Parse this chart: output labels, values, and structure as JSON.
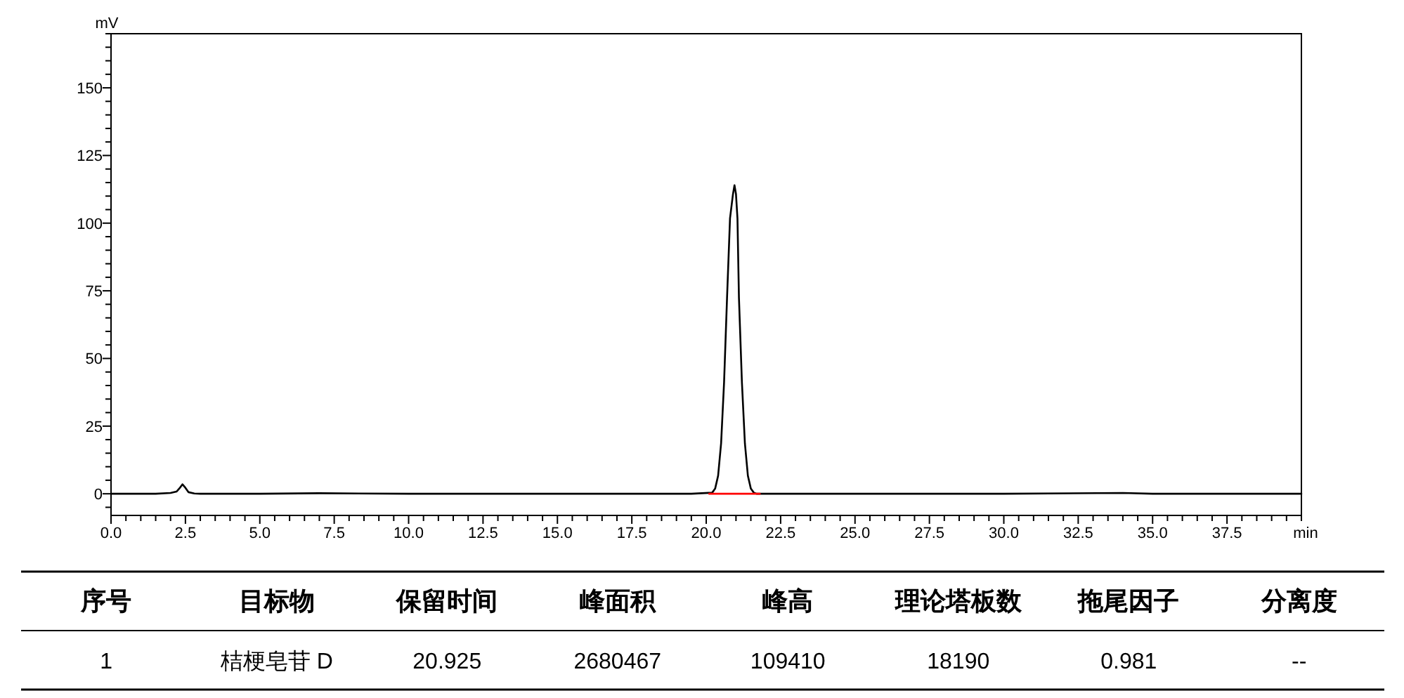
{
  "chart_data": {
    "type": "line",
    "xlabel": "min",
    "ylabel": "mV",
    "series": [
      {
        "color": "#000000",
        "x": [
          0,
          1.5,
          2.0,
          2.2,
          2.3,
          2.4,
          2.5,
          2.6,
          2.8,
          3.0,
          5,
          7,
          10,
          15,
          19.5,
          20.2,
          20.3,
          20.4,
          20.5,
          20.6,
          20.7,
          20.8,
          20.9,
          20.95,
          21.0,
          21.05,
          21.1,
          21.2,
          21.3,
          21.4,
          21.5,
          21.6,
          21.7,
          21.8,
          22.5,
          30,
          34,
          35,
          40
        ],
        "values": [
          0,
          0,
          0.3,
          0.8,
          2.0,
          3.5,
          2.2,
          0.6,
          0.1,
          0,
          0,
          0.2,
          0,
          0,
          0,
          0.4,
          1.9,
          6.7,
          18.6,
          41.1,
          72.4,
          101.8,
          110.8,
          114,
          110.8,
          101.8,
          72.4,
          41.1,
          18.6,
          6.7,
          1.9,
          0.4,
          0,
          0,
          0,
          0,
          0.3,
          0,
          0
        ]
      },
      {
        "color": "#ff0000",
        "x": [
          20.1,
          21.8
        ],
        "values": [
          0,
          0
        ]
      }
    ],
    "xlim": [
      0,
      40
    ],
    "ylim": [
      -8,
      170
    ],
    "xticks": [
      {
        "value": 0,
        "label": "0.0"
      },
      {
        "value": 0.5,
        "label": null
      },
      {
        "value": 1,
        "label": null
      },
      {
        "value": 1.5,
        "label": null
      },
      {
        "value": 2,
        "label": null
      },
      {
        "value": 2.5,
        "label": "2.5"
      },
      {
        "value": 3,
        "label": null
      },
      {
        "value": 3.5,
        "label": null
      },
      {
        "value": 4,
        "label": null
      },
      {
        "value": 4.5,
        "label": null
      },
      {
        "value": 5,
        "label": "5.0"
      },
      {
        "value": 5.5,
        "label": null
      },
      {
        "value": 6,
        "label": null
      },
      {
        "value": 6.5,
        "label": null
      },
      {
        "value": 7,
        "label": null
      },
      {
        "value": 7.5,
        "label": "7.5"
      },
      {
        "value": 8,
        "label": null
      },
      {
        "value": 8.5,
        "label": null
      },
      {
        "value": 9,
        "label": null
      },
      {
        "value": 9.5,
        "label": null
      },
      {
        "value": 10,
        "label": "10.0"
      },
      {
        "value": 10.5,
        "label": null
      },
      {
        "value": 11,
        "label": null
      },
      {
        "value": 11.5,
        "label": null
      },
      {
        "value": 12,
        "label": null
      },
      {
        "value": 12.5,
        "label": "12.5"
      },
      {
        "value": 13,
        "label": null
      },
      {
        "value": 13.5,
        "label": null
      },
      {
        "value": 14,
        "label": null
      },
      {
        "value": 14.5,
        "label": null
      },
      {
        "value": 15,
        "label": "15.0"
      },
      {
        "value": 15.5,
        "label": null
      },
      {
        "value": 16,
        "label": null
      },
      {
        "value": 16.5,
        "label": null
      },
      {
        "value": 17,
        "label": null
      },
      {
        "value": 17.5,
        "label": "17.5"
      },
      {
        "value": 18,
        "label": null
      },
      {
        "value": 18.5,
        "label": null
      },
      {
        "value": 19,
        "label": null
      },
      {
        "value": 19.5,
        "label": null
      },
      {
        "value": 20,
        "label": "20.0"
      },
      {
        "value": 20.5,
        "label": null
      },
      {
        "value": 21,
        "label": null
      },
      {
        "value": 21.5,
        "label": null
      },
      {
        "value": 22,
        "label": null
      },
      {
        "value": 22.5,
        "label": "22.5"
      },
      {
        "value": 23,
        "label": null
      },
      {
        "value": 23.5,
        "label": null
      },
      {
        "value": 24,
        "label": null
      },
      {
        "value": 24.5,
        "label": null
      },
      {
        "value": 25,
        "label": "25.0"
      },
      {
        "value": 25.5,
        "label": null
      },
      {
        "value": 26,
        "label": null
      },
      {
        "value": 26.5,
        "label": null
      },
      {
        "value": 27,
        "label": null
      },
      {
        "value": 27.5,
        "label": "27.5"
      },
      {
        "value": 28,
        "label": null
      },
      {
        "value": 28.5,
        "label": null
      },
      {
        "value": 29,
        "label": null
      },
      {
        "value": 29.5,
        "label": null
      },
      {
        "value": 30,
        "label": "30.0"
      },
      {
        "value": 30.5,
        "label": null
      },
      {
        "value": 31,
        "label": null
      },
      {
        "value": 31.5,
        "label": null
      },
      {
        "value": 32,
        "label": null
      },
      {
        "value": 32.5,
        "label": "32.5"
      },
      {
        "value": 33,
        "label": null
      },
      {
        "value": 33.5,
        "label": null
      },
      {
        "value": 34,
        "label": null
      },
      {
        "value": 34.5,
        "label": null
      },
      {
        "value": 35,
        "label": "35.0"
      },
      {
        "value": 35.5,
        "label": null
      },
      {
        "value": 36,
        "label": null
      },
      {
        "value": 36.5,
        "label": null
      },
      {
        "value": 37,
        "label": null
      },
      {
        "value": 37.5,
        "label": "37.5"
      },
      {
        "value": 38,
        "label": null
      },
      {
        "value": 38.5,
        "label": null
      },
      {
        "value": 39,
        "label": null
      },
      {
        "value": 39.5,
        "label": null
      },
      {
        "value": 40,
        "label": null
      }
    ],
    "yticks": [
      {
        "value": -5,
        "label": null
      },
      0,
      {
        "value": 5,
        "label": null
      },
      {
        "value": 10,
        "label": null
      },
      {
        "value": 15,
        "label": null
      },
      {
        "value": 20,
        "label": null
      },
      25,
      {
        "value": 30,
        "label": null
      },
      {
        "value": 35,
        "label": null
      },
      {
        "value": 40,
        "label": null
      },
      {
        "value": 45,
        "label": null
      },
      50,
      {
        "value": 55,
        "label": null
      },
      {
        "value": 60,
        "label": null
      },
      {
        "value": 65,
        "label": null
      },
      {
        "value": 70,
        "label": null
      },
      75,
      {
        "value": 80,
        "label": null
      },
      {
        "value": 85,
        "label": null
      },
      {
        "value": 90,
        "label": null
      },
      {
        "value": 95,
        "label": null
      },
      100,
      {
        "value": 105,
        "label": null
      },
      {
        "value": 110,
        "label": null
      },
      {
        "value": 115,
        "label": null
      },
      {
        "value": 120,
        "label": null
      },
      125,
      {
        "value": 130,
        "label": null
      },
      {
        "value": 135,
        "label": null
      },
      {
        "value": 140,
        "label": null
      },
      {
        "value": 145,
        "label": null
      },
      150,
      {
        "value": 155,
        "label": null
      },
      {
        "value": 160,
        "label": null
      },
      {
        "value": 165,
        "label": null
      },
      {
        "value": 170,
        "label": null
      }
    ],
    "annotations": [
      "序号",
      "目标物",
      "保留时间",
      "峰面积",
      "峰高",
      "理论塔板数",
      "拖尾因子",
      "分离度",
      "1",
      "桔梗皂苷 D",
      "20.925",
      "2680467",
      "109410",
      "18190",
      "0.981",
      "--"
    ]
  }
}
